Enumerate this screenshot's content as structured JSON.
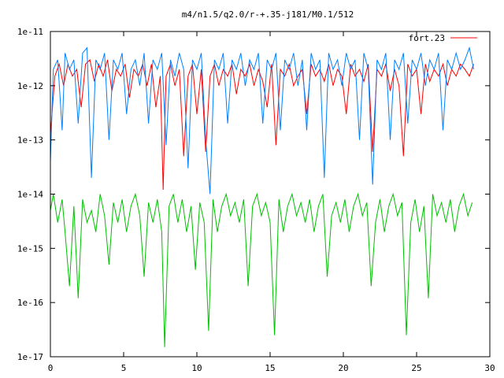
{
  "chart_data": {
    "type": "line",
    "title": "m4/n1.5/q2.0/r-+.35-j181/M0.1/512",
    "xlabel": "",
    "ylabel": "",
    "xlim": [
      0,
      30
    ],
    "ylim": [
      1e-17,
      1e-11
    ],
    "yscale": "log",
    "grid": false,
    "legend_position": "top-right",
    "x_ticks": [
      {
        "value": 0,
        "label": "0"
      },
      {
        "value": 5,
        "label": "5"
      },
      {
        "value": 10,
        "label": "10"
      },
      {
        "value": 15,
        "label": "15"
      },
      {
        "value": 20,
        "label": "20"
      },
      {
        "value": 25,
        "label": "25"
      },
      {
        "value": 30,
        "label": "30"
      }
    ],
    "y_ticks": [
      {
        "value": 1e-11,
        "label": "1e-11"
      },
      {
        "value": 1e-12,
        "label": "1e-12"
      },
      {
        "value": 1e-13,
        "label": "1e-13"
      },
      {
        "value": 1e-14,
        "label": "1e-14"
      },
      {
        "value": 1e-15,
        "label": "1e-15"
      },
      {
        "value": 1e-16,
        "label": "1e-16"
      },
      {
        "value": 1e-17,
        "label": "1e-17"
      }
    ],
    "series": [
      {
        "name": "fort.23",
        "color": "#ff0000",
        "x": [
          0.0,
          0.3,
          0.6,
          0.9,
          1.2,
          1.5,
          1.8,
          2.1,
          2.4,
          2.7,
          3.0,
          3.3,
          3.6,
          3.9,
          4.2,
          4.5,
          4.8,
          5.1,
          5.4,
          5.7,
          6.0,
          6.3,
          6.6,
          6.9,
          7.2,
          7.5,
          7.7,
          7.9,
          8.2,
          8.5,
          8.8,
          9.1,
          9.4,
          9.7,
          10.0,
          10.3,
          10.6,
          10.9,
          11.2,
          11.5,
          11.8,
          12.1,
          12.4,
          12.7,
          13.0,
          13.3,
          13.6,
          13.9,
          14.2,
          14.5,
          14.8,
          15.1,
          15.4,
          15.7,
          16.0,
          16.3,
          16.6,
          16.9,
          17.2,
          17.5,
          17.8,
          18.1,
          18.4,
          18.7,
          19.0,
          19.3,
          19.6,
          19.9,
          20.2,
          20.5,
          20.8,
          21.1,
          21.4,
          21.7,
          22.0,
          22.3,
          22.6,
          22.9,
          23.2,
          23.5,
          23.8,
          24.1,
          24.4,
          24.7,
          25.0,
          25.3,
          25.6,
          25.9,
          26.2,
          26.5,
          26.8,
          27.1,
          27.4,
          27.7,
          28.0,
          28.3,
          28.6,
          28.9
        ],
        "y": [
          1.2e-13,
          1.5e-12,
          2.5e-12,
          1e-12,
          2.5e-12,
          1.5e-12,
          2e-12,
          4e-13,
          2.5e-12,
          3e-12,
          1.2e-12,
          2.5e-12,
          1.5e-12,
          3e-12,
          8e-13,
          2e-12,
          1.5e-12,
          2.5e-12,
          6e-13,
          2e-12,
          1.5e-12,
          2.5e-12,
          1e-12,
          2.5e-12,
          4e-13,
          1.5e-12,
          1.2e-14,
          1.5e-12,
          2.5e-12,
          1e-12,
          2e-12,
          5e-14,
          1.5e-12,
          2.5e-12,
          3e-13,
          2e-12,
          6e-14,
          1.5e-12,
          2.5e-12,
          1e-12,
          2e-12,
          1.5e-12,
          2.5e-12,
          7e-13,
          2e-12,
          1.5e-12,
          2.5e-12,
          1e-12,
          2e-12,
          1.2e-12,
          4e-13,
          2.5e-12,
          8e-14,
          2e-12,
          1.5e-12,
          2.5e-12,
          1e-12,
          1.5e-12,
          2e-12,
          3e-13,
          2.5e-12,
          1.5e-12,
          2e-12,
          1.2e-12,
          2.5e-12,
          1e-12,
          2e-12,
          1.5e-12,
          3e-13,
          2.5e-12,
          1.5e-12,
          2e-12,
          1.2e-12,
          2.5e-12,
          6e-14,
          2e-12,
          1.5e-12,
          2.5e-12,
          8e-13,
          2e-12,
          1e-12,
          5e-14,
          2.5e-12,
          1.5e-12,
          2e-12,
          3e-13,
          2.5e-12,
          1.2e-12,
          2e-12,
          1.5e-12,
          2.5e-12,
          1e-12,
          2e-12,
          1.5e-12,
          2.5e-12,
          2e-12,
          1.5e-12,
          2.5e-12
        ]
      },
      {
        "color": "#0080ff",
        "x": [
          0.0,
          0.2,
          0.5,
          0.8,
          1.0,
          1.3,
          1.6,
          1.9,
          2.2,
          2.5,
          2.8,
          3.1,
          3.4,
          3.7,
          4.0,
          4.3,
          4.6,
          4.9,
          5.2,
          5.5,
          5.8,
          6.1,
          6.4,
          6.7,
          7.0,
          7.3,
          7.6,
          7.9,
          8.2,
          8.5,
          8.8,
          9.1,
          9.4,
          9.7,
          10.0,
          10.3,
          10.6,
          10.9,
          11.2,
          11.5,
          11.8,
          12.1,
          12.4,
          12.7,
          13.0,
          13.3,
          13.6,
          13.9,
          14.2,
          14.5,
          14.8,
          15.1,
          15.4,
          15.7,
          16.0,
          16.3,
          16.6,
          16.9,
          17.2,
          17.5,
          17.8,
          18.1,
          18.4,
          18.7,
          19.0,
          19.3,
          19.6,
          19.9,
          20.2,
          20.5,
          20.8,
          21.1,
          21.4,
          21.7,
          22.0,
          22.3,
          22.6,
          22.9,
          23.2,
          23.5,
          23.8,
          24.1,
          24.4,
          24.7,
          25.0,
          25.3,
          25.6,
          25.9,
          26.2,
          26.5,
          26.8,
          27.1,
          27.4,
          27.7,
          28.0,
          28.3,
          28.6,
          28.9
        ],
        "y": [
          4e-14,
          2e-12,
          3e-12,
          1.5e-13,
          4e-12,
          2e-12,
          3e-12,
          2e-13,
          4e-12,
          5e-12,
          2e-14,
          3e-12,
          2e-12,
          4e-12,
          1e-13,
          3e-12,
          2e-12,
          4e-12,
          3e-13,
          2e-12,
          3e-12,
          1e-12,
          4e-12,
          2e-13,
          3e-12,
          2e-12,
          4e-12,
          8e-14,
          3e-12,
          1.5e-12,
          4e-12,
          2e-12,
          3e-14,
          3e-12,
          2e-12,
          4e-12,
          1e-13,
          1e-14,
          3e-12,
          2e-12,
          4e-12,
          2e-13,
          3e-12,
          2e-12,
          4e-12,
          1e-12,
          3e-12,
          2e-12,
          4e-12,
          2e-13,
          3e-12,
          2e-12,
          4e-12,
          1.5e-13,
          3e-12,
          2e-12,
          4e-12,
          1e-12,
          3e-12,
          1.5e-13,
          4e-12,
          2e-12,
          3e-12,
          2e-14,
          4e-12,
          2e-12,
          3e-12,
          1e-12,
          4e-12,
          2e-12,
          3e-12,
          1e-13,
          4e-12,
          2e-12,
          1.5e-14,
          3e-12,
          2e-12,
          4e-12,
          1e-13,
          3e-12,
          2e-12,
          4e-12,
          2e-13,
          3e-12,
          2e-12,
          4e-12,
          1e-12,
          3e-12,
          2e-12,
          4e-12,
          1.5e-13,
          3e-12,
          2e-12,
          4e-12,
          2e-12,
          3e-12,
          5e-12,
          2e-12
        ]
      },
      {
        "color": "#00c000",
        "x": [
          0.0,
          0.2,
          0.5,
          0.8,
          1.0,
          1.3,
          1.6,
          1.9,
          2.2,
          2.5,
          2.8,
          3.1,
          3.4,
          3.7,
          4.0,
          4.3,
          4.6,
          4.9,
          5.2,
          5.5,
          5.8,
          6.1,
          6.4,
          6.7,
          7.0,
          7.3,
          7.6,
          7.8,
          8.1,
          8.4,
          8.7,
          9.0,
          9.3,
          9.6,
          9.9,
          10.2,
          10.5,
          10.8,
          11.1,
          11.4,
          11.7,
          12.0,
          12.3,
          12.6,
          12.9,
          13.2,
          13.5,
          13.8,
          14.1,
          14.4,
          14.7,
          15.0,
          15.3,
          15.6,
          15.9,
          16.2,
          16.5,
          16.8,
          17.1,
          17.4,
          17.7,
          18.0,
          18.3,
          18.6,
          18.9,
          19.2,
          19.5,
          19.8,
          20.1,
          20.4,
          20.7,
          21.0,
          21.3,
          21.6,
          21.9,
          22.2,
          22.5,
          22.8,
          23.1,
          23.4,
          23.7,
          24.0,
          24.3,
          24.6,
          24.9,
          25.2,
          25.5,
          25.8,
          26.1,
          26.4,
          26.7,
          27.0,
          27.3,
          27.6,
          27.9,
          28.2,
          28.5,
          28.8
        ],
        "y": [
          5e-15,
          1e-14,
          3e-15,
          8e-15,
          2e-15,
          2e-16,
          6e-15,
          1.2e-16,
          8e-15,
          3e-15,
          5e-15,
          2e-15,
          1e-14,
          4e-15,
          5e-16,
          7e-15,
          3e-15,
          8e-15,
          2e-15,
          6e-15,
          1e-14,
          4e-15,
          3e-16,
          7e-15,
          3e-15,
          8e-15,
          2e-15,
          1.5e-17,
          6e-15,
          1e-14,
          3e-15,
          8e-15,
          2e-15,
          6e-15,
          4e-16,
          7e-15,
          3e-15,
          3e-17,
          8e-15,
          2e-15,
          6e-15,
          1e-14,
          4e-15,
          7e-15,
          3e-15,
          8e-15,
          2e-16,
          6e-15,
          1e-14,
          4e-15,
          7e-15,
          3e-15,
          2.5e-17,
          8e-15,
          2e-15,
          6e-15,
          1e-14,
          4e-15,
          7e-15,
          3e-15,
          8e-15,
          2e-15,
          6e-15,
          1e-14,
          3e-16,
          4e-15,
          7e-15,
          3e-15,
          8e-15,
          2e-15,
          6e-15,
          1e-14,
          4e-15,
          7e-15,
          2e-16,
          3e-15,
          8e-15,
          2e-15,
          6e-15,
          1e-14,
          4e-15,
          7e-15,
          2.5e-17,
          3e-15,
          8e-15,
          2e-15,
          6e-15,
          1.2e-16,
          1e-14,
          4e-15,
          7e-15,
          3e-15,
          8e-15,
          2e-15,
          6e-15,
          1e-14,
          4e-15,
          7e-15
        ]
      }
    ]
  }
}
